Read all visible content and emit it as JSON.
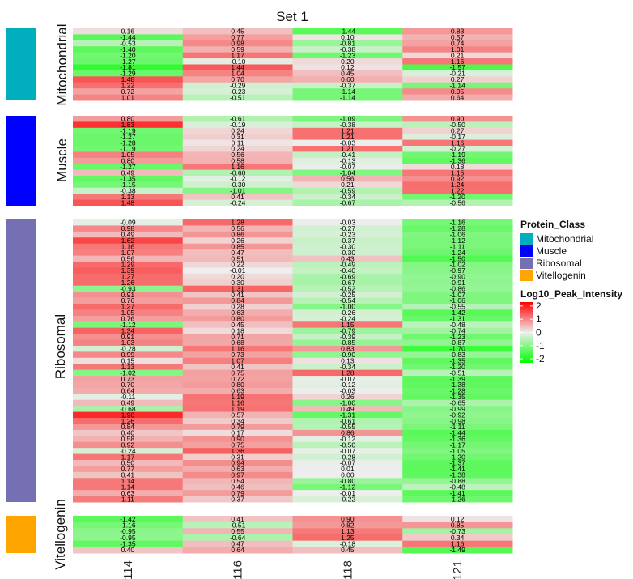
{
  "chart_data": {
    "type": "heatmap",
    "title": "Set 1",
    "columns": [
      "114",
      "116",
      "118",
      "121"
    ],
    "color_scale": {
      "name": "Log10_Peak_Intensity",
      "min": -2.3,
      "max": 2.3,
      "low_color": "#00ff00",
      "mid_color": "#eeeeee",
      "high_color": "#ff0000",
      "ticks": [
        "2",
        "1",
        "0",
        "-1",
        "-2"
      ]
    },
    "annotation_legend": {
      "title": "Protein_Class",
      "items": [
        {
          "label": "Mitochondrial",
          "color": "#00aebd"
        },
        {
          "label": "Muscle",
          "color": "#0000ff"
        },
        {
          "label": "Ribosomal",
          "color": "#7570b3"
        },
        {
          "label": "Vitellogenin",
          "color": "#ffa500"
        }
      ]
    },
    "groups": [
      {
        "name": "Mitochondrial",
        "color": "#00aebd",
        "rows": [
          [
            0.16,
            0.45,
            -1.44,
            0.83
          ],
          [
            -1.44,
            0.77,
            0.1,
            0.57
          ],
          [
            -0.53,
            0.98,
            -0.81,
            0.74
          ],
          [
            -1.4,
            0.59,
            -0.38,
            1.01
          ],
          [
            -1.2,
            1.17,
            -1.23,
            0.21
          ],
          [
            -1.27,
            -0.1,
            0.2,
            1.16
          ],
          [
            -1.81,
            1.44,
            0.12,
            -1.57
          ],
          [
            -1.29,
            1.04,
            0.45,
            -0.21
          ],
          [
            1.48,
            0.7,
            0.6,
            0.27
          ],
          [
            1.22,
            -0.29,
            -0.37,
            -1.14
          ],
          [
            0.72,
            -0.23,
            -1.14,
            0.95
          ],
          [
            1.01,
            -0.51,
            -1.14,
            0.64
          ]
        ]
      },
      {
        "name": "Muscle",
        "color": "#0000ff",
        "rows": [
          [
            0.8,
            -0.61,
            -1.09,
            0.9
          ],
          [
            1.83,
            -0.19,
            -0.38,
            -0.5
          ],
          [
            -1.19,
            0.24,
            1.21,
            0.27
          ],
          [
            -1.27,
            0.31,
            1.21,
            -0.17
          ],
          [
            -1.28,
            0.11,
            -0.03,
            1.16
          ],
          [
            -1.19,
            0.24,
            1.21,
            -0.27
          ],
          [
            1.05,
            0.56,
            -0.41,
            -1.19
          ],
          [
            0.8,
            0.58,
            -0.13,
            -1.36
          ],
          [
            -1.27,
            1.16,
            -0.07,
            0.18
          ],
          [
            0.49,
            -0.6,
            -1.04,
            1.15
          ],
          [
            -1.35,
            -0.12,
            0.56,
            0.92
          ],
          [
            -1.15,
            -0.3,
            0.21,
            1.24
          ],
          [
            -0.38,
            -1.01,
            -0.59,
            1.22
          ],
          [
            1.13,
            0.41,
            -0.34,
            -1.2
          ],
          [
            1.48,
            -0.24,
            -0.67,
            -0.56
          ]
        ]
      },
      {
        "name": "Ribosomal",
        "color": "#7570b3",
        "rows": [
          [
            -0.09,
            1.28,
            -0.03,
            -1.16
          ],
          [
            0.98,
            0.56,
            -0.27,
            -1.28
          ],
          [
            0.49,
            0.86,
            -0.23,
            -1.06
          ],
          [
            1.62,
            0.26,
            -0.37,
            -1.12
          ],
          [
            1.16,
            0.85,
            -0.3,
            -1.11
          ],
          [
            1.07,
            0.47,
            -0.3,
            -1.24
          ],
          [
            0.56,
            0.51,
            0.43,
            -1.5
          ],
          [
            1.29,
            0.22,
            -0.49,
            -1.02
          ],
          [
            1.39,
            -0.01,
            -0.4,
            -0.97
          ],
          [
            1.27,
            0.2,
            -0.69,
            -0.9
          ],
          [
            1.26,
            0.3,
            -0.67,
            -0.91
          ],
          [
            -0.93,
            1.31,
            -0.52,
            -0.86
          ],
          [
            0.91,
            0.41,
            -0.25,
            -1.07
          ],
          [
            0.76,
            0.84,
            -0.54,
            -1.06
          ],
          [
            1.27,
            0.28,
            -1.0,
            -0.55
          ],
          [
            1.05,
            0.63,
            -0.26,
            -1.42
          ],
          [
            0.76,
            0.8,
            -0.24,
            -1.31
          ],
          [
            -1.12,
            0.45,
            1.15,
            -0.48
          ],
          [
            1.34,
            0.18,
            -0.79,
            -0.74
          ],
          [
            0.91,
            0.71,
            -0.39,
            -1.23
          ],
          [
            1.03,
            0.68,
            -0.85,
            -0.87
          ],
          [
            -0.28,
            1.16,
            0.83,
            -1.7
          ],
          [
            0.99,
            0.73,
            -0.9,
            -0.83
          ],
          [
            0.15,
            1.07,
            0.13,
            -1.35
          ],
          [
            1.13,
            0.41,
            -0.34,
            -1.2
          ],
          [
            -1.02,
            0.75,
            1.28,
            -0.51
          ],
          [
            0.73,
            0.72,
            -0.07,
            -1.39
          ],
          [
            0.7,
            0.8,
            -0.12,
            -1.38
          ],
          [
            0.64,
            0.63,
            -0.03,
            -1.28
          ],
          [
            -0.11,
            1.19,
            0.26,
            -1.35
          ],
          [
            0.49,
            1.16,
            -1.0,
            -0.65
          ],
          [
            -0.68,
            1.19,
            0.49,
            -0.99
          ],
          [
            1.9,
            0.57,
            -1.31,
            -0.92
          ],
          [
            1.26,
            0.34,
            -0.61,
            -0.98
          ],
          [
            0.84,
            0.79,
            -0.55,
            -1.11
          ],
          [
            0.4,
            0.17,
            0.86,
            -1.44
          ],
          [
            0.58,
            0.9,
            -0.12,
            -1.36
          ],
          [
            0.92,
            0.75,
            -0.5,
            -1.17
          ],
          [
            -0.24,
            1.36,
            -0.07,
            -1.05
          ],
          [
            1.17,
            0.31,
            -0.28,
            -1.2
          ],
          [
            0.5,
            0.94,
            -0.07,
            -1.37
          ],
          [
            0.77,
            0.63,
            0.01,
            -1.41
          ],
          [
            0.41,
            0.97,
            -0.0,
            -1.38
          ],
          [
            1.14,
            0.54,
            -0.8,
            -0.88
          ],
          [
            1.14,
            0.46,
            -1.12,
            -0.48
          ],
          [
            0.63,
            0.79,
            -0.01,
            -1.41
          ],
          [
            1.11,
            0.37,
            -0.22,
            -1.26
          ]
        ]
      },
      {
        "name": "Vitellogenin",
        "color": "#ffa500",
        "rows": [
          [
            -1.42,
            0.41,
            0.9,
            0.12
          ],
          [
            -1.16,
            -0.51,
            0.82,
            0.85
          ],
          [
            -0.95,
            0.55,
            1.13,
            -0.73
          ],
          [
            -0.95,
            -0.64,
            1.25,
            0.34
          ],
          [
            -1.35,
            0.47,
            -0.18,
            1.16
          ],
          [
            0.4,
            0.64,
            0.45,
            -1.49
          ]
        ]
      }
    ]
  }
}
